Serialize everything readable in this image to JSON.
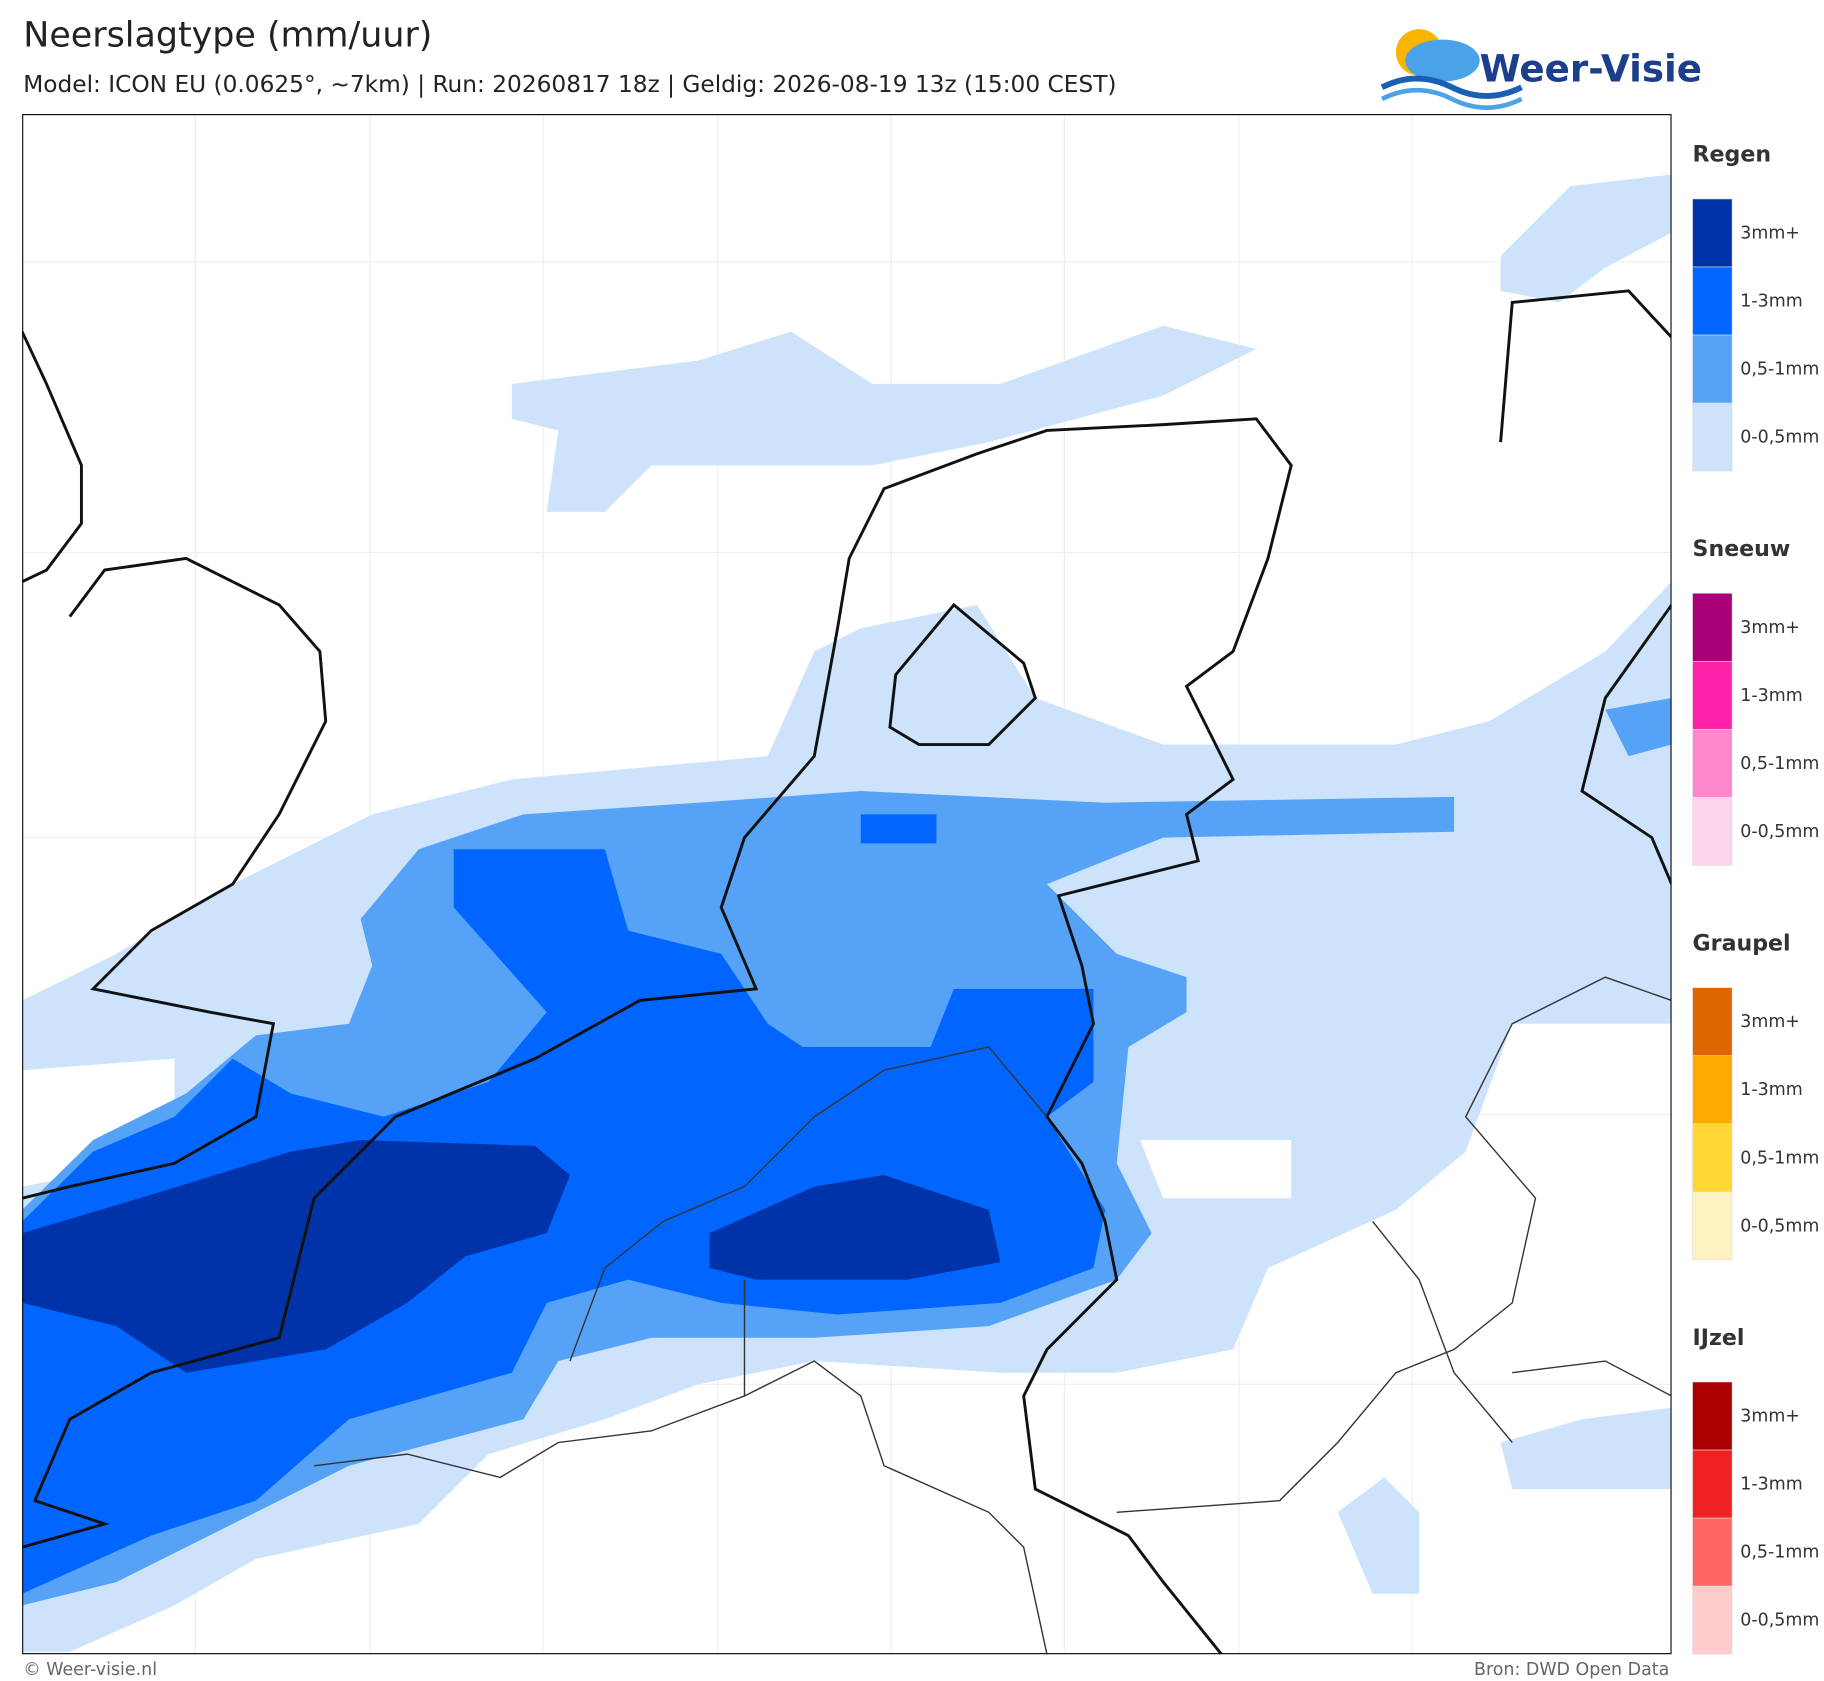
{
  "header": {
    "title": "Neerslagtype (mm/uur)",
    "subtitle": "Model: ICON EU (0.0625°, ~7km)  |  Run: 20260817 18z  |  Geldig: 2026-08-19 13z (15:00 CEST)",
    "logo": "Weer-Visie"
  },
  "legend": [
    {
      "title": "Regen",
      "items": [
        {
          "label": "3mm+",
          "color": "#0033aa"
        },
        {
          "label": "1-3mm",
          "color": "#0066ff"
        },
        {
          "label": "0,5-1mm",
          "color": "#55a2f7"
        },
        {
          "label": "0-0,5mm",
          "color": "#cce3fb"
        }
      ]
    },
    {
      "title": "Sneeuw",
      "items": [
        {
          "label": "3mm+",
          "color": "#aa0077"
        },
        {
          "label": "1-3mm",
          "color": "#ff22aa"
        },
        {
          "label": "0,5-1mm",
          "color": "#ff88cc"
        },
        {
          "label": "0-0,5mm",
          "color": "#ffd5ee"
        }
      ]
    },
    {
      "title": "Graupel",
      "items": [
        {
          "label": "3mm+",
          "color": "#dd6600"
        },
        {
          "label": "1-3mm",
          "color": "#ffaa00"
        },
        {
          "label": "0,5-1mm",
          "color": "#ffd633"
        },
        {
          "label": "0-0,5mm",
          "color": "#fff2c2"
        }
      ]
    },
    {
      "title": "IJzel",
      "items": [
        {
          "label": "3mm+",
          "color": "#aa0000"
        },
        {
          "label": "1-3mm",
          "color": "#ee2222"
        },
        {
          "label": "0,5-1mm",
          "color": "#ff6666"
        },
        {
          "label": "0-0,5mm",
          "color": "#ffcccc"
        }
      ]
    }
  ],
  "footer": {
    "left": "© Weer-visie.nl",
    "right": "Bron: DWD Open Data"
  }
}
